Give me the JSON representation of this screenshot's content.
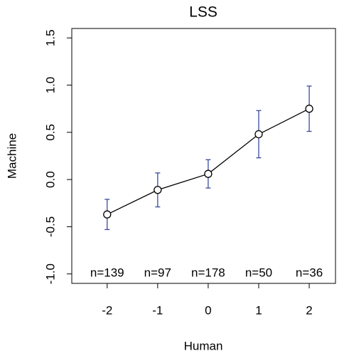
{
  "chart_data": {
    "type": "line",
    "title": "LSS",
    "x_label": "Human",
    "y_label": "Machine",
    "x": [
      -2,
      -1,
      0,
      1,
      2
    ],
    "series": [
      {
        "color": "#000000",
        "values": [
          -0.37,
          -0.11,
          0.06,
          0.48,
          0.75
        ],
        "errors": [
          0.16,
          0.18,
          0.15,
          0.25,
          0.24
        ],
        "error_color": "#3b4a9c"
      }
    ],
    "annotations": [
      "n=139",
      "n=97",
      "n=178",
      "n=50",
      "n=36"
    ],
    "xlim": [
      -2.7,
      2.52
    ],
    "ylim": [
      -1.1,
      1.6
    ],
    "xticks": [
      -2,
      -1,
      0,
      1,
      2
    ],
    "yticks": [
      {
        "value": -1,
        "label": "-1.0"
      },
      -0.5,
      {
        "value": 0,
        "label": "0.0"
      },
      0.5,
      {
        "value": 1,
        "label": "1.0"
      },
      1.5
    ]
  }
}
